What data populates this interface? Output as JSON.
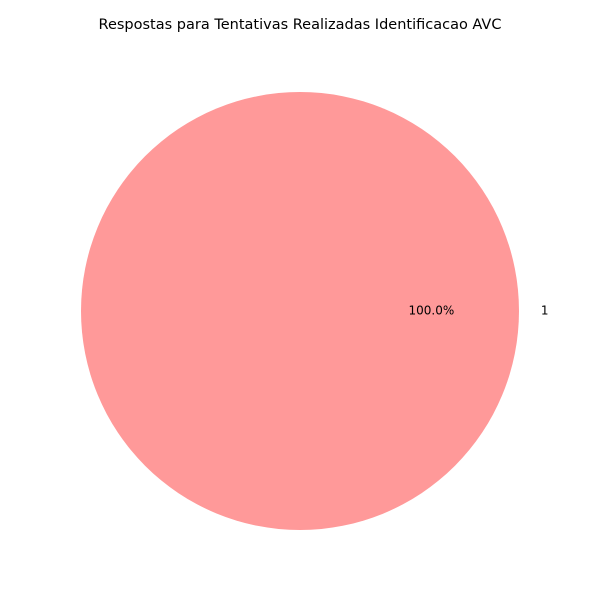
{
  "chart_data": {
    "type": "pie",
    "title": "Respostas para Tentativas Realizadas Identificacao AVC",
    "slices": [
      {
        "label": "1",
        "value": 1,
        "percent_label": "100.0%",
        "color": "#ff9999"
      }
    ],
    "legend": "none"
  }
}
